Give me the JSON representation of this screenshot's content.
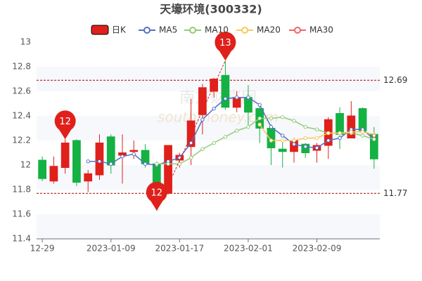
{
  "chart_data": {
    "type": "candlestick",
    "title": "天壕环境(300332)",
    "watermark": [
      "南方财富网",
      "southmoney.com"
    ],
    "categories": [
      "12-29",
      null,
      null,
      null,
      null,
      null,
      "2023-01-09",
      null,
      null,
      null,
      null,
      null,
      "2023-01-17",
      null,
      null,
      null,
      null,
      null,
      "2023-02-01",
      null,
      null,
      null,
      null,
      null,
      "2023-02-09",
      null,
      null,
      null,
      null,
      null
    ],
    "candles": {
      "name": "日K",
      "up_color": "#e0201b",
      "down_color": "#14b143",
      "open": [
        12.04,
        11.87,
        11.98,
        12.2,
        11.87,
        11.92,
        12.23,
        12.08,
        12.11,
        12.12,
        12.01,
        11.77,
        12.04,
        12.15,
        12.41,
        12.6,
        12.73,
        12.47,
        12.55,
        12.46,
        12.3,
        12.13,
        12.11,
        12.17,
        12.12,
        12.16,
        12.42,
        12.22,
        12.46,
        12.25
      ],
      "close": [
        11.89,
        11.99,
        12.18,
        11.86,
        11.93,
        12.18,
        12.0,
        12.1,
        12.12,
        12.01,
        11.77,
        12.16,
        12.08,
        12.36,
        12.63,
        12.7,
        12.47,
        12.55,
        12.43,
        12.3,
        12.14,
        12.11,
        12.2,
        12.1,
        12.16,
        12.37,
        12.25,
        12.4,
        12.28,
        12.05
      ],
      "high": [
        12.07,
        12.07,
        12.21,
        12.21,
        11.96,
        12.25,
        12.25,
        12.25,
        12.2,
        12.17,
        12.03,
        12.16,
        12.1,
        12.54,
        12.66,
        12.71,
        12.85,
        12.6,
        12.65,
        12.5,
        12.33,
        12.2,
        12.22,
        12.18,
        12.18,
        12.39,
        12.47,
        12.52,
        12.47,
        12.31
      ],
      "low": [
        11.87,
        11.85,
        11.93,
        11.83,
        11.78,
        11.88,
        11.93,
        11.85,
        12.05,
        11.98,
        11.63,
        11.76,
        11.98,
        12.0,
        12.25,
        12.55,
        12.45,
        12.43,
        12.3,
        12.18,
        12.0,
        11.98,
        12.02,
        12.06,
        12.02,
        12.05,
        12.13,
        12.22,
        12.24,
        11.97
      ]
    },
    "series": [
      {
        "name": "MA5",
        "color": "#5470c6",
        "values": [
          null,
          null,
          null,
          null,
          12.03,
          12.03,
          12.01,
          12.07,
          12.09,
          12.01,
          12.0,
          12.03,
          12.06,
          12.18,
          12.37,
          12.46,
          12.54,
          12.55,
          12.55,
          12.49,
          12.31,
          12.24,
          12.17,
          12.15,
          12.14,
          12.2,
          12.22,
          12.29,
          12.29,
          12.21
        ]
      },
      {
        "name": "MA10",
        "color": "#91cc75",
        "values": [
          null,
          null,
          null,
          null,
          null,
          null,
          null,
          null,
          null,
          null,
          12.01,
          12.01,
          12.01,
          12.06,
          12.13,
          12.18,
          12.23,
          12.28,
          12.31,
          12.38,
          12.38,
          12.39,
          12.36,
          12.31,
          12.29,
          12.26,
          12.26,
          12.26,
          12.24,
          12.21
        ]
      },
      {
        "name": "MA20",
        "color": "#fac858",
        "values": [
          null,
          null,
          null,
          null,
          null,
          null,
          null,
          null,
          null,
          null,
          null,
          null,
          null,
          null,
          null,
          null,
          null,
          null,
          null,
          12.33,
          12.2,
          12.2,
          12.2,
          12.22,
          12.22,
          12.26,
          12.26,
          12.27,
          12.27,
          12.25
        ]
      },
      {
        "name": "MA30",
        "color": "#ee6666",
        "values": [
          null,
          null,
          null,
          null,
          null,
          null,
          null,
          null,
          null,
          null,
          null,
          null,
          null,
          null,
          null,
          null,
          null,
          null,
          null,
          null,
          null,
          null,
          null,
          null,
          null,
          null,
          null,
          null,
          null,
          12.24
        ]
      }
    ],
    "ref_lines": [
      12.69,
      11.77
    ],
    "annotations": [
      {
        "text": "12",
        "value": 12.21
      },
      {
        "text": "12",
        "value": 11.63
      },
      {
        "text": "13",
        "value": 12.85
      }
    ],
    "ylim": [
      11.4,
      13
    ],
    "yticks": [
      11.4,
      11.6,
      11.8,
      12,
      12.2,
      12.4,
      12.6,
      12.8,
      13
    ]
  }
}
